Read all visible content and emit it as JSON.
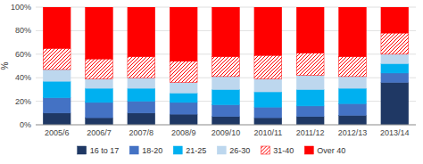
{
  "chart_data": {
    "type": "bar",
    "stacked": true,
    "ylabel": "%",
    "categories": [
      "2005/6",
      "2006/7",
      "2007/8",
      "2008/9",
      "2009/10",
      "2010/11",
      "2011/12",
      "2012/13",
      "2013/14"
    ],
    "series": [
      {
        "name": "16 to 17",
        "color": "#1f3864",
        "values": [
          10,
          6,
          10,
          9,
          7,
          6,
          7,
          8,
          36
        ]
      },
      {
        "name": "18-20",
        "color": "#4472c4",
        "values": [
          13,
          13,
          10,
          10,
          10,
          9,
          9,
          10,
          8
        ]
      },
      {
        "name": "21-25",
        "color": "#00b0f0",
        "values": [
          14,
          12,
          11,
          8,
          13,
          13,
          14,
          13,
          8
        ]
      },
      {
        "name": "26-30",
        "color": "#bdd7ee",
        "values": [
          10,
          8,
          9,
          9,
          11,
          11,
          12,
          10,
          8
        ]
      },
      {
        "name": "31-40",
        "color": "#ff0000",
        "values": [
          18,
          17,
          18,
          18,
          17,
          20,
          19,
          17,
          18
        ]
      },
      {
        "name": "Over 40",
        "color": "#ff0000",
        "values": [
          35,
          44,
          42,
          46,
          42,
          41,
          39,
          42,
          22
        ]
      }
    ],
    "ylim": [
      0,
      100
    ],
    "yticks": [
      {
        "value": 0,
        "label": "0%"
      },
      {
        "value": 20,
        "label": "20%"
      },
      {
        "value": 40,
        "label": "40%"
      },
      {
        "value": 60,
        "label": "60%"
      },
      {
        "value": 80,
        "label": "80%"
      },
      {
        "value": 100,
        "label": "100%"
      }
    ],
    "grid": true,
    "legend": "bottom"
  }
}
